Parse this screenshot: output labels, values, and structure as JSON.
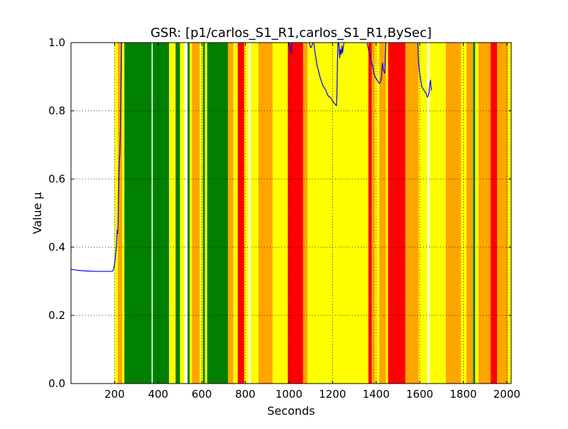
{
  "chart_data": {
    "type": "line",
    "title": "GSR: [p1/carlos_S1_R1,carlos_S1_R1,BySec]",
    "xlabel": "Seconds",
    "ylabel": "Value μ",
    "xlim": [
      0,
      2020
    ],
    "ylim": [
      0.0,
      1.0
    ],
    "x_ticks": [
      200,
      400,
      600,
      800,
      1000,
      1200,
      1400,
      1600,
      1800,
      2000
    ],
    "y_ticks": [
      0.0,
      0.2,
      0.4,
      0.6,
      0.8,
      1.0
    ],
    "x_tick_labels": [
      "200",
      "400",
      "600",
      "800",
      "1000",
      "1200",
      "1400",
      "1600",
      "1800",
      "2000"
    ],
    "y_tick_labels": [
      "0.0",
      "0.2",
      "0.4",
      "0.6",
      "0.8",
      "1.0"
    ],
    "grid": true,
    "legend": "none",
    "line_color": "#0000ff",
    "band_colors": {
      "green": "#008000",
      "yellow": "#ffff00",
      "orange": "#ffa500",
      "red": "#ff0000"
    },
    "bands": [
      {
        "x0": 200,
        "x1": 215,
        "color": "yellow"
      },
      {
        "x0": 215,
        "x1": 235,
        "color": "orange"
      },
      {
        "x0": 235,
        "x1": 245,
        "color": "yellow"
      },
      {
        "x0": 245,
        "x1": 370,
        "color": "green"
      },
      {
        "x0": 375,
        "x1": 450,
        "color": "green"
      },
      {
        "x0": 450,
        "x1": 460,
        "color": "yellow"
      },
      {
        "x0": 460,
        "x1": 480,
        "color": "yellow"
      },
      {
        "x0": 480,
        "x1": 500,
        "color": "green"
      },
      {
        "x0": 500,
        "x1": 520,
        "color": "yellow"
      },
      {
        "x0": 535,
        "x1": 545,
        "color": "green"
      },
      {
        "x0": 545,
        "x1": 555,
        "color": "yellow"
      },
      {
        "x0": 555,
        "x1": 590,
        "color": "orange"
      },
      {
        "x0": 590,
        "x1": 605,
        "color": "yellow"
      },
      {
        "x0": 605,
        "x1": 615,
        "color": "green"
      },
      {
        "x0": 615,
        "x1": 625,
        "color": "yellow"
      },
      {
        "x0": 625,
        "x1": 720,
        "color": "green"
      },
      {
        "x0": 720,
        "x1": 745,
        "color": "orange"
      },
      {
        "x0": 745,
        "x1": 765,
        "color": "yellow"
      },
      {
        "x0": 765,
        "x1": 795,
        "color": "red"
      },
      {
        "x0": 795,
        "x1": 815,
        "color": "yellow"
      },
      {
        "x0": 825,
        "x1": 860,
        "color": "yellow"
      },
      {
        "x0": 860,
        "x1": 925,
        "color": "orange"
      },
      {
        "x0": 925,
        "x1": 995,
        "color": "yellow"
      },
      {
        "x0": 995,
        "x1": 1065,
        "color": "red"
      },
      {
        "x0": 1065,
        "x1": 1085,
        "color": "orange"
      },
      {
        "x0": 1085,
        "x1": 1365,
        "color": "yellow"
      },
      {
        "x0": 1365,
        "x1": 1380,
        "color": "red"
      },
      {
        "x0": 1380,
        "x1": 1395,
        "color": "orange"
      },
      {
        "x0": 1395,
        "x1": 1415,
        "color": "yellow"
      },
      {
        "x0": 1415,
        "x1": 1445,
        "color": "orange"
      },
      {
        "x0": 1445,
        "x1": 1455,
        "color": "yellow"
      },
      {
        "x0": 1455,
        "x1": 1535,
        "color": "red"
      },
      {
        "x0": 1535,
        "x1": 1595,
        "color": "orange"
      },
      {
        "x0": 1595,
        "x1": 1635,
        "color": "yellow"
      },
      {
        "x0": 1645,
        "x1": 1720,
        "color": "yellow"
      },
      {
        "x0": 1720,
        "x1": 1790,
        "color": "orange"
      },
      {
        "x0": 1790,
        "x1": 1815,
        "color": "yellow"
      },
      {
        "x0": 1815,
        "x1": 1845,
        "color": "orange"
      },
      {
        "x0": 1845,
        "x1": 1855,
        "color": "green"
      },
      {
        "x0": 1855,
        "x1": 1870,
        "color": "yellow"
      },
      {
        "x0": 1870,
        "x1": 1925,
        "color": "orange"
      },
      {
        "x0": 1925,
        "x1": 1955,
        "color": "red"
      },
      {
        "x0": 1955,
        "x1": 2005,
        "color": "orange"
      },
      {
        "x0": 2005,
        "x1": 2020,
        "color": "yellow"
      }
    ],
    "series": [
      {
        "points": [
          [
            0,
            0.335
          ],
          [
            20,
            0.333
          ],
          [
            50,
            0.331
          ],
          [
            80,
            0.33
          ],
          [
            110,
            0.329
          ],
          [
            140,
            0.329
          ],
          [
            170,
            0.329
          ],
          [
            190,
            0.329
          ],
          [
            195,
            0.335
          ],
          [
            198,
            0.345
          ],
          [
            202,
            0.36
          ],
          [
            205,
            0.38
          ],
          [
            208,
            0.4
          ],
          [
            210,
            0.42
          ],
          [
            212,
            0.45
          ],
          [
            214,
            0.44
          ],
          [
            216,
            0.47
          ],
          [
            218,
            0.55
          ],
          [
            220,
            0.62
          ],
          [
            222,
            0.66
          ],
          [
            224,
            0.67
          ],
          [
            226,
            0.72
          ],
          [
            228,
            0.82
          ],
          [
            230,
            0.92
          ],
          [
            232,
            1.02
          ],
          [
            995,
            1.02
          ],
          [
            1000,
            0.99
          ],
          [
            1005,
            0.985
          ],
          [
            1010,
            0.97
          ],
          [
            1012,
            0.99
          ],
          [
            1015,
            1.02
          ],
          [
            1090,
            1.02
          ],
          [
            1095,
            0.995
          ],
          [
            1100,
            0.985
          ],
          [
            1105,
            0.99
          ],
          [
            1110,
            1.0
          ],
          [
            1112,
            1.02
          ],
          [
            1115,
            0.995
          ],
          [
            1120,
            0.97
          ],
          [
            1125,
            0.95
          ],
          [
            1130,
            0.93
          ],
          [
            1135,
            0.92
          ],
          [
            1140,
            0.905
          ],
          [
            1145,
            0.895
          ],
          [
            1150,
            0.885
          ],
          [
            1155,
            0.875
          ],
          [
            1160,
            0.87
          ],
          [
            1165,
            0.865
          ],
          [
            1170,
            0.86
          ],
          [
            1175,
            0.85
          ],
          [
            1180,
            0.845
          ],
          [
            1185,
            0.84
          ],
          [
            1190,
            0.84
          ],
          [
            1195,
            0.835
          ],
          [
            1200,
            0.83
          ],
          [
            1205,
            0.825
          ],
          [
            1210,
            0.82
          ],
          [
            1215,
            0.818
          ],
          [
            1218,
            0.815
          ],
          [
            1220,
            0.84
          ],
          [
            1223,
            0.95
          ],
          [
            1226,
            1.02
          ],
          [
            1230,
            0.99
          ],
          [
            1233,
            0.955
          ],
          [
            1236,
            0.98
          ],
          [
            1240,
            0.965
          ],
          [
            1243,
            0.99
          ],
          [
            1246,
            0.97
          ],
          [
            1250,
            0.99
          ],
          [
            1253,
            1.0
          ],
          [
            1256,
            1.02
          ],
          [
            1355,
            1.02
          ],
          [
            1360,
            0.995
          ],
          [
            1365,
            0.98
          ],
          [
            1370,
            0.97
          ],
          [
            1375,
            0.955
          ],
          [
            1380,
            0.94
          ],
          [
            1385,
            0.93
          ],
          [
            1390,
            0.91
          ],
          [
            1395,
            0.9
          ],
          [
            1400,
            0.895
          ],
          [
            1405,
            0.89
          ],
          [
            1410,
            0.885
          ],
          [
            1415,
            0.88
          ],
          [
            1420,
            0.885
          ],
          [
            1425,
            0.9
          ],
          [
            1428,
            0.93
          ],
          [
            1430,
            0.94
          ],
          [
            1433,
            0.92
          ],
          [
            1436,
            0.915
          ],
          [
            1440,
            0.91
          ],
          [
            1442,
            0.95
          ],
          [
            1445,
            1.0
          ],
          [
            1447,
            1.02
          ],
          [
            1590,
            1.02
          ],
          [
            1595,
            0.94
          ],
          [
            1598,
            0.92
          ],
          [
            1600,
            0.91
          ],
          [
            1605,
            0.89
          ],
          [
            1610,
            0.87
          ],
          [
            1615,
            0.865
          ],
          [
            1620,
            0.86
          ],
          [
            1625,
            0.855
          ],
          [
            1630,
            0.85
          ],
          [
            1635,
            0.84
          ],
          [
            1640,
            0.845
          ],
          [
            1643,
            0.855
          ],
          [
            1645,
            0.87
          ],
          [
            1647,
            0.88
          ],
          [
            1650,
            0.89
          ],
          [
            1652,
            0.87
          ],
          [
            1654,
            0.86
          ]
        ]
      }
    ]
  }
}
